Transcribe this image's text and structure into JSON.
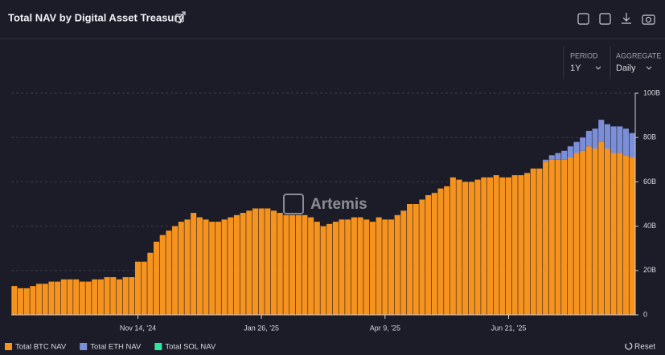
{
  "chart_data": {
    "type": "bar",
    "stacked": true,
    "title": "Total NAV by Digital Asset Treasury",
    "categories": [
      null,
      null,
      null,
      null,
      null,
      null,
      null,
      null,
      null,
      null,
      null,
      null,
      null,
      null,
      null,
      null,
      null,
      null,
      null,
      null,
      "Nov 14, '24",
      null,
      null,
      null,
      null,
      null,
      null,
      null,
      null,
      null,
      null,
      null,
      null,
      null,
      null,
      null,
      null,
      null,
      null,
      null,
      "Jan 26, '25",
      null,
      null,
      null,
      null,
      null,
      null,
      null,
      null,
      null,
      null,
      null,
      null,
      null,
      null,
      null,
      null,
      null,
      null,
      null,
      "Apr 9, '25",
      null,
      null,
      null,
      null,
      null,
      null,
      null,
      null,
      null,
      null,
      null,
      null,
      null,
      null,
      null,
      null,
      null,
      null,
      null,
      "Jun 21, '25",
      null,
      null,
      null,
      null,
      null,
      null,
      null,
      null,
      null,
      null,
      null,
      null,
      null,
      null,
      null,
      null,
      null,
      null,
      null,
      null
    ],
    "series": [
      {
        "name": "Total BTC NAV",
        "color": "#f5931e",
        "values": [
          13,
          12,
          12,
          13,
          14,
          14,
          15,
          15,
          16,
          16,
          16,
          15,
          15,
          16,
          16,
          17,
          17,
          16,
          17,
          17,
          24,
          24,
          28,
          33,
          36,
          38,
          40,
          42,
          43,
          46,
          44,
          43,
          42,
          42,
          43,
          44,
          45,
          46,
          47,
          48,
          48,
          48,
          47,
          46,
          45,
          45,
          45,
          45,
          44,
          42,
          40,
          41,
          42,
          43,
          43,
          44,
          44,
          43,
          42,
          44,
          43,
          43,
          45,
          47,
          50,
          50,
          52,
          54,
          55,
          57,
          58,
          62,
          61,
          60,
          60,
          61,
          62,
          62,
          63,
          62,
          62,
          63,
          63,
          64,
          66,
          66,
          69,
          70,
          70,
          70,
          71,
          73,
          74,
          76,
          75,
          78,
          75,
          73,
          73,
          72,
          71
        ]
      },
      {
        "name": "Total ETH NAV",
        "color": "#7b8ed8",
        "values": [
          0,
          0,
          0,
          0,
          0,
          0,
          0,
          0,
          0,
          0,
          0,
          0,
          0,
          0,
          0,
          0,
          0,
          0,
          0,
          0,
          0,
          0,
          0,
          0,
          0,
          0,
          0,
          0,
          0,
          0,
          0,
          0,
          0,
          0,
          0,
          0,
          0,
          0,
          0,
          0,
          0,
          0,
          0,
          0,
          0,
          0,
          0,
          0,
          0,
          0,
          0,
          0,
          0,
          0,
          0,
          0,
          0,
          0,
          0,
          0,
          0,
          0,
          0,
          0,
          0,
          0,
          0,
          0,
          0,
          0,
          0,
          0,
          0,
          0,
          0,
          0,
          0,
          0,
          0,
          0,
          0,
          0,
          0,
          0,
          0,
          0,
          1,
          2,
          3,
          4,
          5,
          5,
          6,
          7,
          9,
          10,
          11,
          12,
          12,
          12,
          11
        ]
      },
      {
        "name": "Total SOL NAV",
        "color": "#2ee6a0",
        "values": [
          0,
          0,
          0,
          0,
          0,
          0,
          0,
          0,
          0,
          0,
          0,
          0,
          0,
          0,
          0,
          0,
          0,
          0,
          0,
          0,
          0,
          0,
          0,
          0,
          0,
          0,
          0,
          0,
          0,
          0,
          0,
          0,
          0,
          0,
          0,
          0,
          0,
          0,
          0,
          0,
          0,
          0,
          0,
          0,
          0,
          0,
          0,
          0,
          0,
          0,
          0,
          0,
          0,
          0,
          0,
          0,
          0,
          0,
          0,
          0,
          0,
          0,
          0,
          0,
          0,
          0,
          0,
          0,
          0,
          0,
          0,
          0,
          0,
          0,
          0,
          0,
          0,
          0,
          0,
          0,
          0,
          0,
          0,
          0,
          0,
          0,
          0,
          0,
          0,
          0,
          0,
          0,
          0,
          0,
          0,
          0,
          0,
          0,
          0,
          0,
          0
        ]
      }
    ],
    "ylim": [
      0,
      100
    ],
    "yticks": [
      0,
      {
        "value": 20,
        "label": "20B"
      },
      {
        "value": 40,
        "label": "40B"
      },
      {
        "value": 60,
        "label": "60B"
      },
      {
        "value": 80,
        "label": "80B"
      },
      {
        "value": 100,
        "label": "100B"
      }
    ],
    "grid": true,
    "watermark": "Artemis"
  },
  "controls": {
    "period_label": "PERIOD",
    "period": "1Y",
    "aggregate_label": "AGGREGATE",
    "aggregate": "Daily",
    "reset": "Reset"
  }
}
